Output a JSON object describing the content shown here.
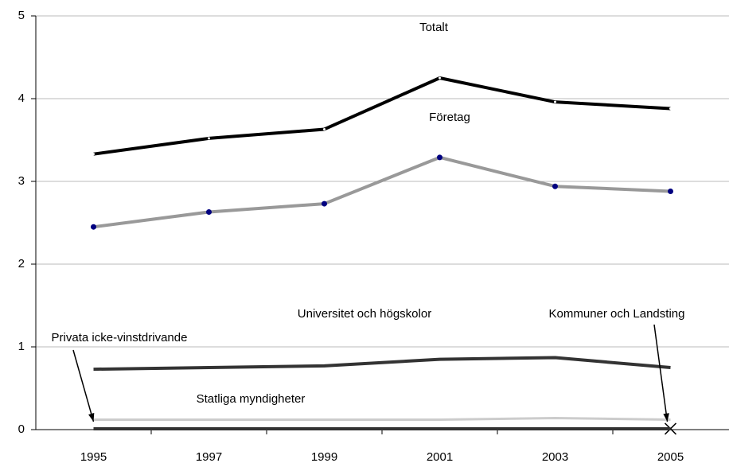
{
  "chart_data": {
    "type": "line",
    "categories": [
      "1995",
      "1997",
      "1999",
      "2001",
      "2003",
      "2005"
    ],
    "series": [
      {
        "name": "Totalt",
        "color": "#000000",
        "values": [
          3.33,
          3.52,
          3.63,
          4.25,
          3.96,
          3.88
        ]
      },
      {
        "name": "Företag",
        "color": "#999999",
        "values": [
          2.45,
          2.63,
          2.73,
          3.29,
          2.94,
          2.88
        ]
      },
      {
        "name": "Universitet och högskolor",
        "color": "#333333",
        "values": [
          0.73,
          0.75,
          0.77,
          0.85,
          0.87,
          0.75
        ]
      },
      {
        "name": "Kommuner och Landsting",
        "color": "#000000",
        "values": [
          0.01,
          0.01,
          0.01,
          0.01,
          0.01,
          0.01
        ]
      },
      {
        "name": "Privata icke-vinstdrivande",
        "color": "#333333",
        "values": [
          0.01,
          0.01,
          0.01,
          0.01,
          0.01,
          0.01
        ]
      },
      {
        "name": "Statliga myndigheter",
        "color": "#cccccc",
        "values": [
          0.12,
          0.12,
          0.12,
          0.12,
          0.14,
          0.12
        ]
      }
    ],
    "ylim": [
      0,
      5
    ],
    "yticks": [
      0,
      1,
      2,
      3,
      4,
      5
    ],
    "grid": true
  }
}
